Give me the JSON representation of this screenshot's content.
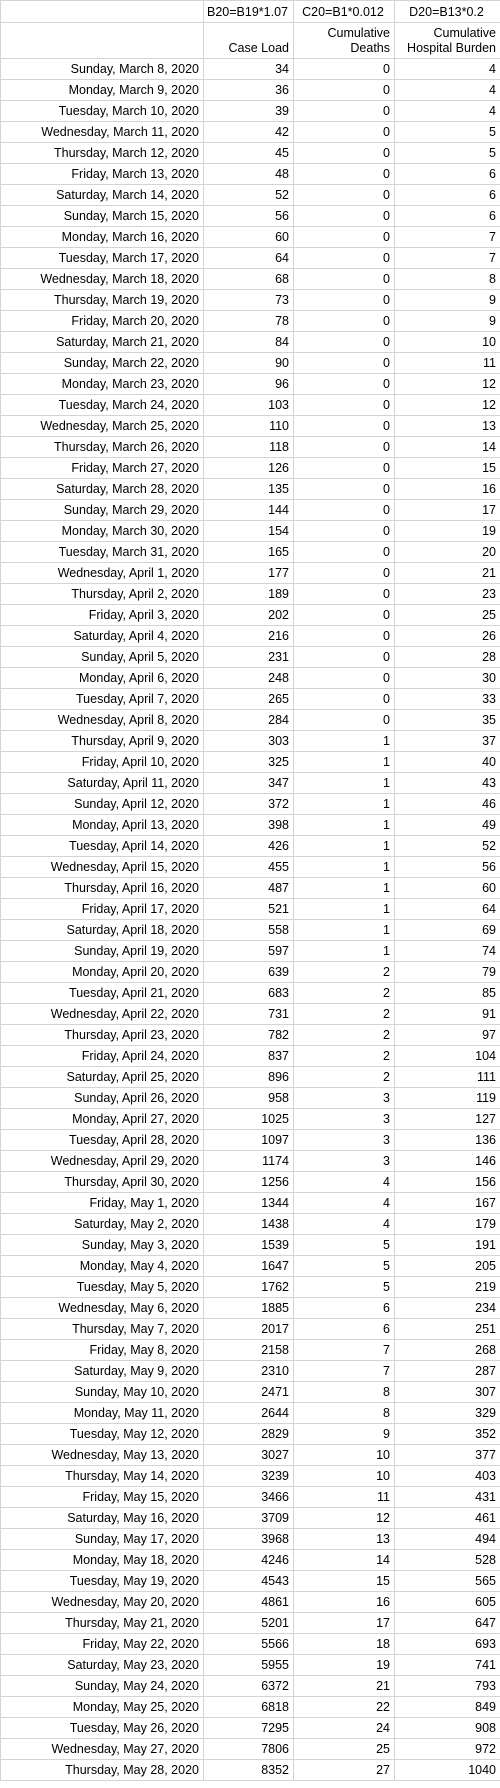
{
  "formulas": [
    "",
    "B20=B19*1.07",
    "C20=B1*0.012",
    "D20=B13*0.2"
  ],
  "headers": [
    "",
    "Case Load",
    "Cumulative Deaths",
    "Cumulative Hospital Burden"
  ],
  "rows": [
    [
      "Sunday, March 8, 2020",
      "34",
      "0",
      "4"
    ],
    [
      "Monday, March 9, 2020",
      "36",
      "0",
      "4"
    ],
    [
      "Tuesday, March 10, 2020",
      "39",
      "0",
      "4"
    ],
    [
      "Wednesday, March 11, 2020",
      "42",
      "0",
      "5"
    ],
    [
      "Thursday, March 12, 2020",
      "45",
      "0",
      "5"
    ],
    [
      "Friday, March 13, 2020",
      "48",
      "0",
      "6"
    ],
    [
      "Saturday, March 14, 2020",
      "52",
      "0",
      "6"
    ],
    [
      "Sunday, March 15, 2020",
      "56",
      "0",
      "6"
    ],
    [
      "Monday, March 16, 2020",
      "60",
      "0",
      "7"
    ],
    [
      "Tuesday, March 17, 2020",
      "64",
      "0",
      "7"
    ],
    [
      "Wednesday, March 18, 2020",
      "68",
      "0",
      "8"
    ],
    [
      "Thursday, March 19, 2020",
      "73",
      "0",
      "9"
    ],
    [
      "Friday, March 20, 2020",
      "78",
      "0",
      "9"
    ],
    [
      "Saturday, March 21, 2020",
      "84",
      "0",
      "10"
    ],
    [
      "Sunday, March 22, 2020",
      "90",
      "0",
      "11"
    ],
    [
      "Monday, March 23, 2020",
      "96",
      "0",
      "12"
    ],
    [
      "Tuesday, March 24, 2020",
      "103",
      "0",
      "12"
    ],
    [
      "Wednesday, March 25, 2020",
      "110",
      "0",
      "13"
    ],
    [
      "Thursday, March 26, 2020",
      "118",
      "0",
      "14"
    ],
    [
      "Friday, March 27, 2020",
      "126",
      "0",
      "15"
    ],
    [
      "Saturday, March 28, 2020",
      "135",
      "0",
      "16"
    ],
    [
      "Sunday, March 29, 2020",
      "144",
      "0",
      "17"
    ],
    [
      "Monday, March 30, 2020",
      "154",
      "0",
      "19"
    ],
    [
      "Tuesday, March 31, 2020",
      "165",
      "0",
      "20"
    ],
    [
      "Wednesday, April 1, 2020",
      "177",
      "0",
      "21"
    ],
    [
      "Thursday, April 2, 2020",
      "189",
      "0",
      "23"
    ],
    [
      "Friday, April 3, 2020",
      "202",
      "0",
      "25"
    ],
    [
      "Saturday, April 4, 2020",
      "216",
      "0",
      "26"
    ],
    [
      "Sunday, April 5, 2020",
      "231",
      "0",
      "28"
    ],
    [
      "Monday, April 6, 2020",
      "248",
      "0",
      "30"
    ],
    [
      "Tuesday, April 7, 2020",
      "265",
      "0",
      "33"
    ],
    [
      "Wednesday, April 8, 2020",
      "284",
      "0",
      "35"
    ],
    [
      "Thursday, April 9, 2020",
      "303",
      "1",
      "37"
    ],
    [
      "Friday, April 10, 2020",
      "325",
      "1",
      "40"
    ],
    [
      "Saturday, April 11, 2020",
      "347",
      "1",
      "43"
    ],
    [
      "Sunday, April 12, 2020",
      "372",
      "1",
      "46"
    ],
    [
      "Monday, April 13, 2020",
      "398",
      "1",
      "49"
    ],
    [
      "Tuesday, April 14, 2020",
      "426",
      "1",
      "52"
    ],
    [
      "Wednesday, April 15, 2020",
      "455",
      "1",
      "56"
    ],
    [
      "Thursday, April 16, 2020",
      "487",
      "1",
      "60"
    ],
    [
      "Friday, April 17, 2020",
      "521",
      "1",
      "64"
    ],
    [
      "Saturday, April 18, 2020",
      "558",
      "1",
      "69"
    ],
    [
      "Sunday, April 19, 2020",
      "597",
      "1",
      "74"
    ],
    [
      "Monday, April 20, 2020",
      "639",
      "2",
      "79"
    ],
    [
      "Tuesday, April 21, 2020",
      "683",
      "2",
      "85"
    ],
    [
      "Wednesday, April 22, 2020",
      "731",
      "2",
      "91"
    ],
    [
      "Thursday, April 23, 2020",
      "782",
      "2",
      "97"
    ],
    [
      "Friday, April 24, 2020",
      "837",
      "2",
      "104"
    ],
    [
      "Saturday, April 25, 2020",
      "896",
      "2",
      "111"
    ],
    [
      "Sunday, April 26, 2020",
      "958",
      "3",
      "119"
    ],
    [
      "Monday, April 27, 2020",
      "1025",
      "3",
      "127"
    ],
    [
      "Tuesday, April 28, 2020",
      "1097",
      "3",
      "136"
    ],
    [
      "Wednesday, April 29, 2020",
      "1174",
      "3",
      "146"
    ],
    [
      "Thursday, April 30, 2020",
      "1256",
      "4",
      "156"
    ],
    [
      "Friday, May 1, 2020",
      "1344",
      "4",
      "167"
    ],
    [
      "Saturday, May 2, 2020",
      "1438",
      "4",
      "179"
    ],
    [
      "Sunday, May 3, 2020",
      "1539",
      "5",
      "191"
    ],
    [
      "Monday, May 4, 2020",
      "1647",
      "5",
      "205"
    ],
    [
      "Tuesday, May 5, 2020",
      "1762",
      "5",
      "219"
    ],
    [
      "Wednesday, May 6, 2020",
      "1885",
      "6",
      "234"
    ],
    [
      "Thursday, May 7, 2020",
      "2017",
      "6",
      "251"
    ],
    [
      "Friday, May 8, 2020",
      "2158",
      "7",
      "268"
    ],
    [
      "Saturday, May 9, 2020",
      "2310",
      "7",
      "287"
    ],
    [
      "Sunday, May 10, 2020",
      "2471",
      "8",
      "307"
    ],
    [
      "Monday, May 11, 2020",
      "2644",
      "8",
      "329"
    ],
    [
      "Tuesday, May 12, 2020",
      "2829",
      "9",
      "352"
    ],
    [
      "Wednesday, May 13, 2020",
      "3027",
      "10",
      "377"
    ],
    [
      "Thursday, May 14, 2020",
      "3239",
      "10",
      "403"
    ],
    [
      "Friday, May 15, 2020",
      "3466",
      "11",
      "431"
    ],
    [
      "Saturday, May 16, 2020",
      "3709",
      "12",
      "461"
    ],
    [
      "Sunday, May 17, 2020",
      "3968",
      "13",
      "494"
    ],
    [
      "Monday, May 18, 2020",
      "4246",
      "14",
      "528"
    ],
    [
      "Tuesday, May 19, 2020",
      "4543",
      "15",
      "565"
    ],
    [
      "Wednesday, May 20, 2020",
      "4861",
      "16",
      "605"
    ],
    [
      "Thursday, May 21, 2020",
      "5201",
      "17",
      "647"
    ],
    [
      "Friday, May 22, 2020",
      "5566",
      "18",
      "693"
    ],
    [
      "Saturday, May 23, 2020",
      "5955",
      "19",
      "741"
    ],
    [
      "Sunday, May 24, 2020",
      "6372",
      "21",
      "793"
    ],
    [
      "Monday, May 25, 2020",
      "6818",
      "22",
      "849"
    ],
    [
      "Tuesday, May 26, 2020",
      "7295",
      "24",
      "908"
    ],
    [
      "Wednesday, May 27, 2020",
      "7806",
      "25",
      "972"
    ],
    [
      "Thursday, May 28, 2020",
      "8352",
      "27",
      "1040"
    ]
  ]
}
